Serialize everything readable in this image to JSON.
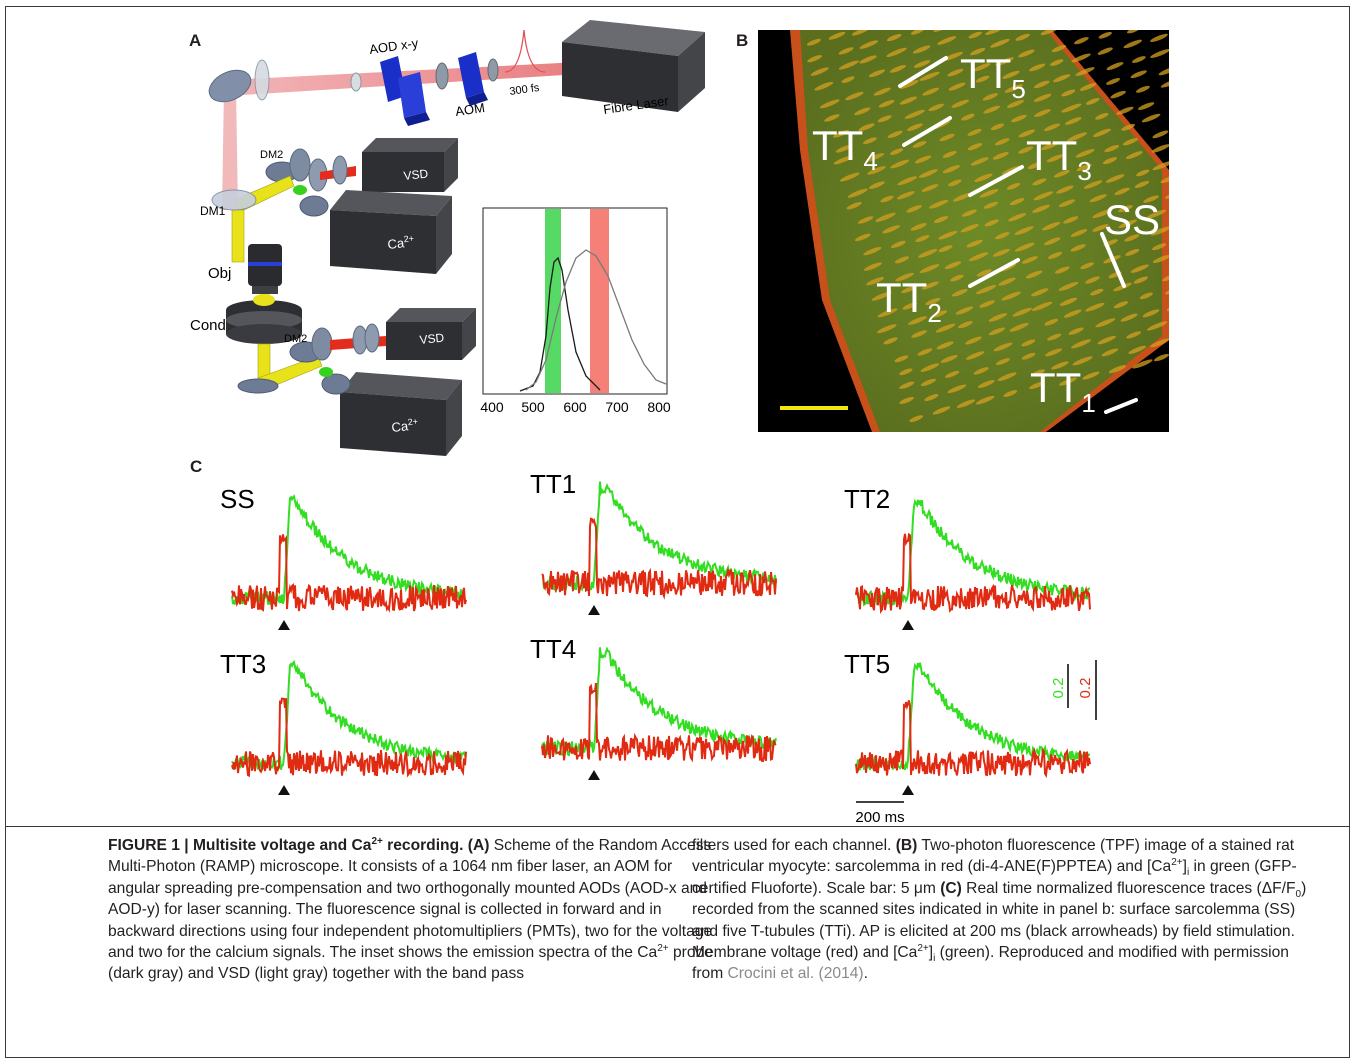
{
  "figure": {
    "panel_labels": {
      "a": "A",
      "b": "B",
      "c": "C"
    },
    "panel_a": {
      "labels": {
        "aod": "AOD x-y",
        "aom": "AOM",
        "pulse": "300 fs",
        "laser": "Fibre Laser",
        "dm2_top": "DM2",
        "dm1": "DM1",
        "vsd_top": "VSD",
        "ca_top": "Ca",
        "obj": "Obj",
        "cond": "Cond",
        "dm2_bottom": "DM2",
        "vsd_bottom": "VSD",
        "ca_bottom": "Ca"
      },
      "inset_ticks": [
        "400",
        "500",
        "600",
        "700",
        "800"
      ],
      "colors": {
        "aod_blue": "#1a2fc8",
        "beam_red": "#e0565a",
        "beam_yellow": "#e8e21a",
        "box": "#3b3c40"
      }
    },
    "panel_b": {
      "labels": {
        "tt5": "TT5",
        "tt4": "TT4",
        "tt3": "TT3",
        "ss": "SS",
        "tt2": "TT2",
        "tt1": "TT1"
      },
      "scale_bar_color": "#f5e612"
    },
    "panel_c": {
      "traces": [
        {
          "label": "SS"
        },
        {
          "label": "TT1"
        },
        {
          "label": "TT2"
        },
        {
          "label": "TT3"
        },
        {
          "label": "TT4"
        },
        {
          "label": "TT5"
        }
      ],
      "scale_green": "0.2",
      "scale_red": "0.2",
      "time_scale": "200 ms",
      "colors": {
        "calcium": "#33dd22",
        "voltage": "#e02a12"
      }
    }
  },
  "caption": {
    "title": "FIGURE 1 | Multisite voltage and Ca",
    "title_sup": "2+",
    "title_end": " recording.",
    "a_tag": "(A)",
    "a_text": " Scheme of the Random Access Multi-Photon (RAMP) microscope. It consists of a 1064 nm fiber laser, an AOM for angular spreading pre-compensation and two orthogonally mounted AODs (AOD-x and AOD-y) for laser scanning. The fluorescence signal is collected in forward and in backward directions using four independent photomultipliers (PMTs), two for the voltage and two for the calcium signals. The inset shows the emission spectra of the ",
    "a_ca": "Ca",
    "a_ca_sup": "2+",
    "a_text2": " probe (dark gray) and VSD (light gray) together with the band pass",
    "right_text1": "filters used for each channel. ",
    "b_tag": "(B)",
    "b_text": " Two-photon fluorescence (TPF) image of a stained rat ventricular myocyte: sarcolemma in red (di-4-ANE(F)PPTEA) and [Ca",
    "b_sup": "2+",
    "b_text2": "]",
    "b_sub": "i",
    "b_text3": " in green (GFP-certified Fluoforte). Scale bar: 5 μm ",
    "c_tag": "(C)",
    "c_text": " Real time normalized fluorescence traces (ΔF/F",
    "c_sub": "0",
    "c_text2": ") recorded from the scanned sites indicated in white in panel b: surface sarcolemma (SS) and five T-tubules (TTi). AP is elicited at 200 ms (black arrowheads) by field stimulation. Membrane voltage (red) and [Ca",
    "c_sup": "2+",
    "c_text3": "]",
    "c_sub2": "i",
    "c_text4": " (green). Reproduced and modified with permission from ",
    "citation": "Crocini et al. (2014)",
    "end": "."
  }
}
